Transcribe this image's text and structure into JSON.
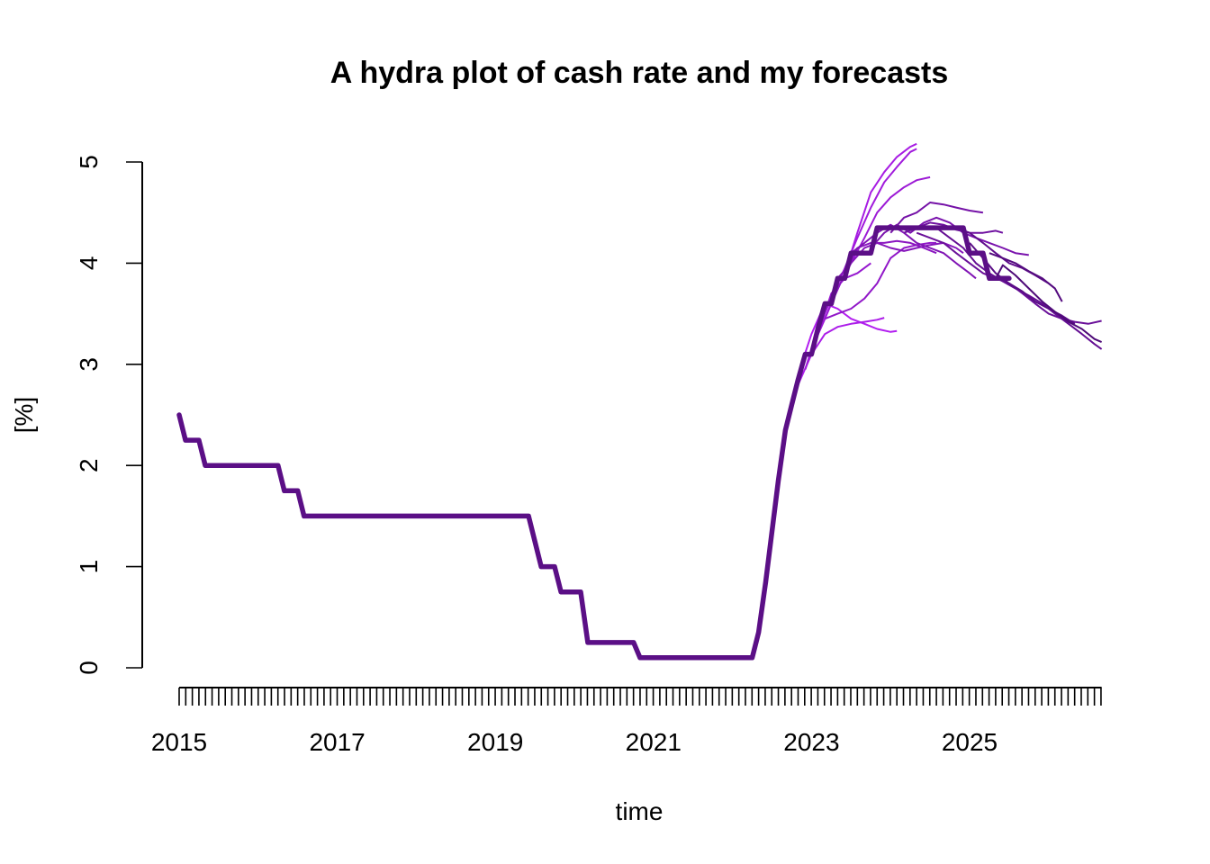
{
  "chart_data": {
    "type": "line",
    "title": "A hydra plot of cash rate and my forecasts",
    "xlabel": "time",
    "ylabel": "[%]",
    "xlim": [
      2015.0,
      2026.67
    ],
    "ylim": [
      0,
      5
    ],
    "x_ticks": [
      "2015",
      "2017",
      "2019",
      "2021",
      "2023",
      "2025"
    ],
    "y_ticks": [
      "0",
      "1",
      "2",
      "3",
      "4",
      "5"
    ],
    "x_minor_tick_step": 0.0833,
    "grid": false,
    "legend": "none",
    "colors": {
      "history": "#5b0f86",
      "forecast_light": "#b21ef0",
      "forecast_dark": "#4e0a78"
    },
    "series": [
      {
        "role": "history",
        "points": [
          [
            2015.0,
            2.5
          ],
          [
            2015.08,
            2.25
          ],
          [
            2015.25,
            2.25
          ],
          [
            2015.33,
            2.0
          ],
          [
            2016.25,
            2.0
          ],
          [
            2016.33,
            1.75
          ],
          [
            2016.5,
            1.75
          ],
          [
            2016.58,
            1.5
          ],
          [
            2019.42,
            1.5
          ],
          [
            2019.58,
            1.0
          ],
          [
            2019.75,
            1.0
          ],
          [
            2019.83,
            0.75
          ],
          [
            2020.08,
            0.75
          ],
          [
            2020.17,
            0.25
          ],
          [
            2020.75,
            0.25
          ],
          [
            2020.83,
            0.1
          ],
          [
            2022.25,
            0.1
          ],
          [
            2022.33,
            0.35
          ],
          [
            2022.42,
            0.85
          ],
          [
            2022.5,
            1.35
          ],
          [
            2022.58,
            1.85
          ],
          [
            2022.67,
            2.35
          ],
          [
            2022.75,
            2.6
          ],
          [
            2022.83,
            2.85
          ],
          [
            2022.92,
            3.1
          ],
          [
            2023.0,
            3.1
          ],
          [
            2023.08,
            3.35
          ],
          [
            2023.17,
            3.6
          ],
          [
            2023.25,
            3.6
          ],
          [
            2023.33,
            3.85
          ],
          [
            2023.42,
            3.85
          ],
          [
            2023.5,
            4.1
          ],
          [
            2023.75,
            4.1
          ],
          [
            2023.83,
            4.35
          ],
          [
            2024.92,
            4.35
          ],
          [
            2025.0,
            4.1
          ],
          [
            2025.17,
            4.1
          ],
          [
            2025.25,
            3.85
          ],
          [
            2025.5,
            3.85
          ]
        ]
      },
      {
        "role": "forecast",
        "points": [
          [
            2022.83,
            2.9
          ],
          [
            2023.0,
            3.3
          ],
          [
            2023.17,
            3.6
          ],
          [
            2023.33,
            3.55
          ],
          [
            2023.5,
            3.45
          ],
          [
            2023.67,
            3.4
          ],
          [
            2023.83,
            3.35
          ],
          [
            2024.0,
            3.32
          ],
          [
            2024.08,
            3.33
          ]
        ]
      },
      {
        "role": "forecast",
        "points": [
          [
            2022.83,
            2.8
          ],
          [
            2023.0,
            3.1
          ],
          [
            2023.17,
            3.3
          ],
          [
            2023.33,
            3.37
          ],
          [
            2023.5,
            3.4
          ],
          [
            2023.67,
            3.42
          ],
          [
            2023.83,
            3.44
          ],
          [
            2023.92,
            3.46
          ]
        ]
      },
      {
        "role": "forecast",
        "points": [
          [
            2022.92,
            2.95
          ],
          [
            2023.08,
            3.3
          ],
          [
            2023.25,
            3.6
          ],
          [
            2023.42,
            3.9
          ],
          [
            2023.58,
            4.3
          ],
          [
            2023.75,
            4.7
          ],
          [
            2023.92,
            4.9
          ],
          [
            2024.08,
            5.05
          ],
          [
            2024.25,
            5.15
          ],
          [
            2024.33,
            5.18
          ]
        ]
      },
      {
        "role": "forecast",
        "points": [
          [
            2022.92,
            2.95
          ],
          [
            2023.08,
            3.35
          ],
          [
            2023.25,
            3.65
          ],
          [
            2023.42,
            3.95
          ],
          [
            2023.58,
            4.25
          ],
          [
            2023.75,
            4.55
          ],
          [
            2023.92,
            4.8
          ],
          [
            2024.08,
            4.95
          ],
          [
            2024.25,
            5.1
          ],
          [
            2024.33,
            5.13
          ]
        ]
      },
      {
        "role": "forecast",
        "points": [
          [
            2023.0,
            3.15
          ],
          [
            2023.17,
            3.45
          ],
          [
            2023.33,
            3.75
          ],
          [
            2023.5,
            4.0
          ],
          [
            2023.67,
            4.25
          ],
          [
            2023.83,
            4.5
          ],
          [
            2024.0,
            4.65
          ],
          [
            2024.17,
            4.75
          ],
          [
            2024.33,
            4.82
          ],
          [
            2024.5,
            4.85
          ]
        ]
      },
      {
        "role": "forecast",
        "points": [
          [
            2023.08,
            3.3
          ],
          [
            2023.25,
            3.7
          ],
          [
            2023.42,
            3.85
          ],
          [
            2023.58,
            3.9
          ],
          [
            2023.75,
            4.0
          ]
        ]
      },
      {
        "role": "forecast",
        "points": [
          [
            2023.17,
            3.45
          ],
          [
            2023.33,
            3.5
          ],
          [
            2023.5,
            3.55
          ],
          [
            2023.67,
            3.65
          ],
          [
            2023.83,
            3.8
          ],
          [
            2024.0,
            4.05
          ],
          [
            2024.17,
            4.15
          ],
          [
            2024.33,
            4.18
          ],
          [
            2024.5,
            4.2
          ],
          [
            2024.58,
            4.2
          ]
        ]
      },
      {
        "role": "forecast",
        "points": [
          [
            2023.25,
            3.6
          ],
          [
            2023.42,
            3.9
          ],
          [
            2023.58,
            4.15
          ],
          [
            2023.75,
            4.2
          ],
          [
            2023.92,
            4.2
          ],
          [
            2024.08,
            4.22
          ],
          [
            2024.25,
            4.2
          ],
          [
            2024.42,
            4.15
          ],
          [
            2024.58,
            4.1
          ]
        ]
      },
      {
        "role": "forecast",
        "points": [
          [
            2023.33,
            3.85
          ],
          [
            2023.5,
            4.0
          ],
          [
            2023.67,
            4.15
          ],
          [
            2023.83,
            4.2
          ],
          [
            2024.0,
            4.15
          ],
          [
            2024.17,
            4.12
          ],
          [
            2024.33,
            4.15
          ],
          [
            2024.5,
            4.18
          ],
          [
            2024.67,
            4.2
          ],
          [
            2024.83,
            4.15
          ],
          [
            2024.92,
            4.1
          ]
        ]
      },
      {
        "role": "forecast",
        "points": [
          [
            2023.5,
            4.1
          ],
          [
            2023.67,
            4.2
          ],
          [
            2023.83,
            4.3
          ],
          [
            2024.0,
            4.38
          ],
          [
            2024.17,
            4.3
          ],
          [
            2024.33,
            4.2
          ],
          [
            2024.5,
            4.15
          ],
          [
            2024.67,
            4.1
          ],
          [
            2024.83,
            4.0
          ],
          [
            2025.0,
            3.9
          ],
          [
            2025.08,
            3.85
          ]
        ]
      },
      {
        "role": "forecast",
        "points": [
          [
            2023.75,
            4.15
          ],
          [
            2023.92,
            4.3
          ],
          [
            2024.08,
            4.38
          ],
          [
            2024.25,
            4.3
          ],
          [
            2024.42,
            4.4
          ],
          [
            2024.58,
            4.45
          ],
          [
            2024.75,
            4.4
          ],
          [
            2024.92,
            4.3
          ],
          [
            2025.08,
            4.25
          ],
          [
            2025.25,
            4.2
          ],
          [
            2025.42,
            4.15
          ],
          [
            2025.58,
            4.1
          ],
          [
            2025.75,
            4.08
          ]
        ]
      },
      {
        "role": "forecast",
        "points": [
          [
            2024.0,
            4.3
          ],
          [
            2024.17,
            4.45
          ],
          [
            2024.33,
            4.5
          ],
          [
            2024.5,
            4.6
          ],
          [
            2024.67,
            4.58
          ],
          [
            2024.83,
            4.55
          ],
          [
            2025.0,
            4.52
          ],
          [
            2025.17,
            4.5
          ]
        ]
      },
      {
        "role": "forecast",
        "points": [
          [
            2024.17,
            4.3
          ],
          [
            2024.33,
            4.35
          ],
          [
            2024.5,
            4.4
          ],
          [
            2024.67,
            4.38
          ],
          [
            2024.83,
            4.33
          ],
          [
            2025.0,
            4.3
          ],
          [
            2025.17,
            4.3
          ],
          [
            2025.33,
            4.32
          ],
          [
            2025.42,
            4.3
          ]
        ]
      },
      {
        "role": "forecast",
        "points": [
          [
            2024.33,
            4.3
          ],
          [
            2024.5,
            4.25
          ],
          [
            2024.67,
            4.2
          ],
          [
            2024.83,
            4.1
          ],
          [
            2025.0,
            4.0
          ],
          [
            2025.17,
            3.9
          ],
          [
            2025.33,
            3.85
          ],
          [
            2025.5,
            3.8
          ],
          [
            2025.67,
            3.7
          ],
          [
            2025.83,
            3.6
          ],
          [
            2026.0,
            3.5
          ],
          [
            2026.17,
            3.45
          ],
          [
            2026.33,
            3.42
          ],
          [
            2026.5,
            3.4
          ],
          [
            2026.67,
            3.43
          ]
        ]
      },
      {
        "role": "forecast",
        "points": [
          [
            2024.58,
            4.35
          ],
          [
            2024.75,
            4.25
          ],
          [
            2024.92,
            4.15
          ],
          [
            2025.08,
            4.0
          ],
          [
            2025.25,
            3.9
          ],
          [
            2025.42,
            3.82
          ],
          [
            2025.58,
            3.75
          ],
          [
            2025.75,
            3.68
          ],
          [
            2025.92,
            3.6
          ],
          [
            2026.08,
            3.5
          ],
          [
            2026.25,
            3.4
          ],
          [
            2026.42,
            3.3
          ],
          [
            2026.58,
            3.2
          ],
          [
            2026.67,
            3.15
          ]
        ]
      },
      {
        "role": "forecast",
        "points": [
          [
            2024.83,
            4.35
          ],
          [
            2025.0,
            4.3
          ],
          [
            2025.17,
            4.2
          ],
          [
            2025.33,
            4.1
          ],
          [
            2025.5,
            4.0
          ],
          [
            2025.67,
            3.95
          ],
          [
            2025.83,
            3.88
          ],
          [
            2026.0,
            3.8
          ],
          [
            2026.08,
            3.75
          ]
        ]
      },
      {
        "role": "forecast",
        "points": [
          [
            2025.0,
            4.2
          ],
          [
            2025.17,
            4.05
          ],
          [
            2025.33,
            3.9
          ],
          [
            2025.5,
            3.8
          ],
          [
            2025.67,
            3.72
          ],
          [
            2025.83,
            3.62
          ],
          [
            2026.0,
            3.55
          ],
          [
            2026.17,
            3.48
          ],
          [
            2026.33,
            3.4
          ]
        ]
      },
      {
        "role": "forecast",
        "points": [
          [
            2025.25,
            4.1
          ],
          [
            2025.42,
            4.05
          ],
          [
            2025.58,
            4.0
          ],
          [
            2025.75,
            3.92
          ],
          [
            2025.92,
            3.85
          ],
          [
            2026.08,
            3.75
          ],
          [
            2026.17,
            3.62
          ]
        ]
      },
      {
        "role": "forecast",
        "points": [
          [
            2025.33,
            3.85
          ],
          [
            2025.42,
            3.98
          ],
          [
            2025.58,
            3.88
          ],
          [
            2025.75,
            3.75
          ],
          [
            2025.92,
            3.62
          ],
          [
            2026.08,
            3.52
          ],
          [
            2026.25,
            3.42
          ],
          [
            2026.42,
            3.35
          ],
          [
            2026.58,
            3.25
          ],
          [
            2026.67,
            3.22
          ]
        ]
      }
    ]
  }
}
